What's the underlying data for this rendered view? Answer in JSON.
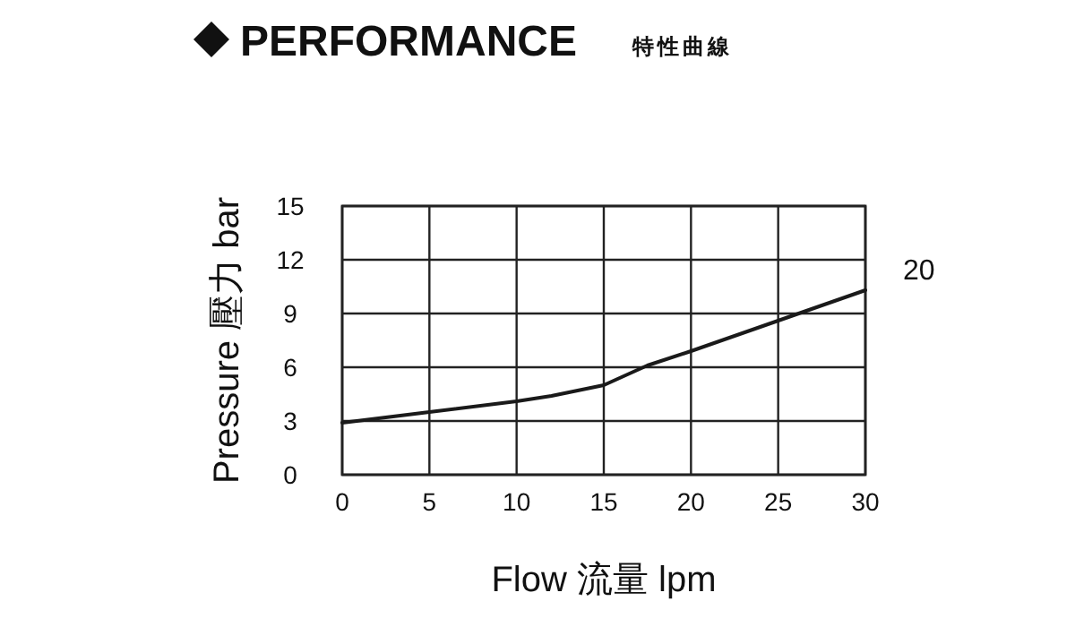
{
  "chart_data": {
    "type": "line",
    "title": "PERFORMANCE",
    "subtitle": "特性曲線",
    "xlabel": "Flow 流量 lpm",
    "ylabel": "Pressure 壓力 bar",
    "x": [
      0,
      5,
      10,
      12,
      15,
      17.5,
      20,
      25,
      30
    ],
    "series": [
      {
        "color": "#1a1a1a",
        "values": [
          2.9,
          3.5,
          4.1,
          4.4,
          5.0,
          6.1,
          6.9,
          8.6,
          10.3
        ]
      }
    ],
    "xlim": [
      0,
      30
    ],
    "xticks": [
      0,
      5,
      10,
      15,
      20,
      25,
      30
    ],
    "ylim": [
      0,
      15
    ],
    "yticks": [
      0,
      3,
      6,
      9,
      12,
      15
    ],
    "grid": true,
    "marker": "none",
    "line_style": "solid",
    "annotations": [
      {
        "text": "20",
        "x": 30,
        "y": 10.3
      }
    ]
  }
}
